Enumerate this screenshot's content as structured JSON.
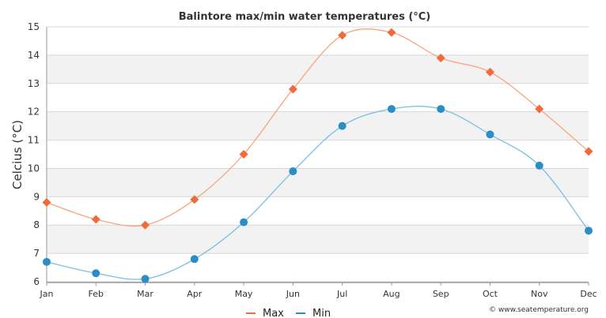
{
  "chart_data": {
    "type": "line",
    "title": "Balintore max/min water temperatures (°C)",
    "xlabel": "",
    "ylabel": "Celcius (°C)",
    "categories": [
      "Jan",
      "Feb",
      "Mar",
      "Apr",
      "May",
      "Jun",
      "Jul",
      "Aug",
      "Sep",
      "Oct",
      "Nov",
      "Dec"
    ],
    "ylim": [
      6,
      15
    ],
    "yticks": [
      6,
      7,
      8,
      9,
      10,
      11,
      12,
      13,
      14,
      15
    ],
    "grid": true,
    "legend_position": "bottom",
    "series": [
      {
        "name": "Max",
        "color": "#f26a3a",
        "marker": "diamond",
        "values": [
          8.8,
          8.2,
          8.0,
          8.9,
          10.5,
          12.8,
          14.7,
          14.8,
          13.9,
          13.4,
          12.1,
          10.6
        ]
      },
      {
        "name": "Min",
        "color": "#2a8ec4",
        "marker": "circle",
        "values": [
          6.7,
          6.3,
          6.1,
          6.8,
          8.1,
          9.9,
          11.5,
          12.1,
          12.1,
          11.2,
          10.1,
          7.8
        ]
      }
    ]
  },
  "credit": "© www.seatemperature.org",
  "colors": {
    "band": "#f2f2f2",
    "grid": "#d8d8d8",
    "axis": "#999999",
    "max_line": "#f7a37f",
    "min_line": "#78bfe3"
  }
}
